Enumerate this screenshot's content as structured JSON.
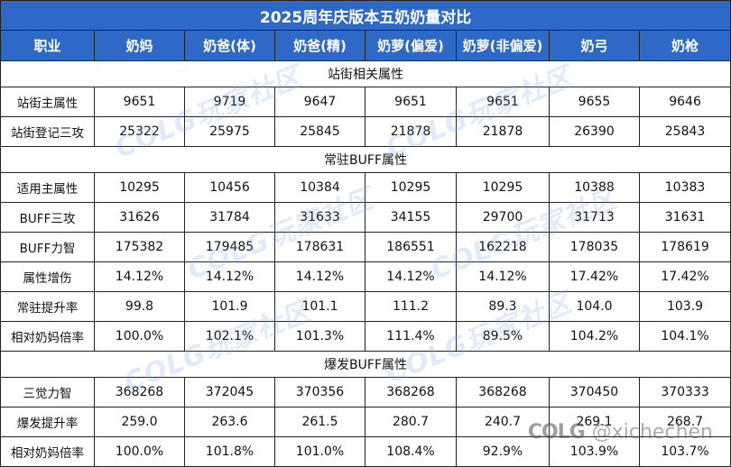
{
  "title": "2025周年庆版本五奶奶量对比",
  "header": {
    "first_col": "职业",
    "columns": [
      "奶妈",
      "奶爸(体)",
      "奶爸(精)",
      "奶萝(偏爱)",
      "奶萝(非偏爱)",
      "奶弓",
      "奶枪"
    ]
  },
  "sections": [
    {
      "title": "站街相关属性",
      "rows": [
        {
          "label": "站街主属性",
          "values": [
            "9651",
            "9719",
            "9647",
            "9651",
            "9651",
            "9655",
            "9646"
          ]
        },
        {
          "label": "站街登记三攻",
          "values": [
            "25322",
            "25975",
            "25845",
            "21878",
            "21878",
            "26390",
            "25843"
          ]
        }
      ]
    },
    {
      "title": "常驻BUFF属性",
      "rows": [
        {
          "label": "适用主属性",
          "values": [
            "10295",
            "10456",
            "10384",
            "10295",
            "10295",
            "10388",
            "10383"
          ]
        },
        {
          "label": "BUFF三攻",
          "values": [
            "31626",
            "31784",
            "31633",
            "34155",
            "29700",
            "31713",
            "31631"
          ]
        },
        {
          "label": "BUFF力智",
          "values": [
            "175382",
            "179485",
            "178631",
            "186551",
            "162218",
            "178035",
            "178619"
          ]
        },
        {
          "label": "属性增伤",
          "values": [
            "14.12%",
            "14.12%",
            "14.12%",
            "14.12%",
            "14.12%",
            "17.42%",
            "17.42%"
          ]
        },
        {
          "label": "常驻提升率",
          "values": [
            "99.8",
            "101.9",
            "101.1",
            "111.2",
            "89.3",
            "104.0",
            "103.9"
          ]
        },
        {
          "label": "相对奶妈倍率",
          "values": [
            "100.0%",
            "102.1%",
            "101.3%",
            "111.4%",
            "89.5%",
            "104.2%",
            "104.1%"
          ]
        }
      ]
    },
    {
      "title": "爆发BUFF属性",
      "rows": [
        {
          "label": "三觉力智",
          "values": [
            "368268",
            "372045",
            "370356",
            "368268",
            "368268",
            "370450",
            "370333"
          ]
        },
        {
          "label": "爆发提升率",
          "values": [
            "259.0",
            "263.6",
            "261.5",
            "280.7",
            "240.7",
            "269.1",
            "268.7"
          ]
        },
        {
          "label": "相对奶妈倍率",
          "values": [
            "100.0%",
            "101.8%",
            "101.0%",
            "108.4%",
            "92.9%",
            "103.9%",
            "103.7%"
          ]
        }
      ]
    }
  ],
  "watermark_text": "COLG玩家社区",
  "credit": {
    "logo": "COLG",
    "handle": "@xichechen"
  },
  "colors": {
    "header_bg": "#2f69c8",
    "header_text": "#ffffff",
    "border": "#222222"
  }
}
